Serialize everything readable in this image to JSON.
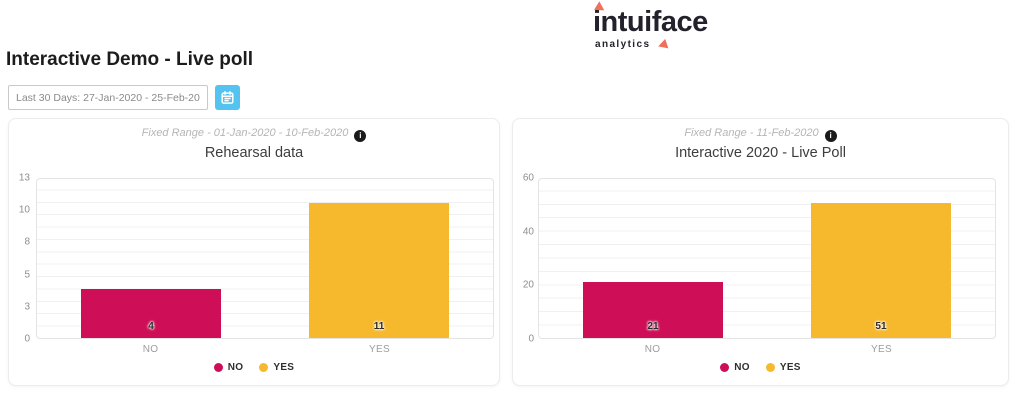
{
  "logo": {
    "brand": "intuiface",
    "sub": "analytics",
    "accent": "#f0705c",
    "text_color": "#23222c"
  },
  "header": {
    "title": "Interactive Demo - Live poll"
  },
  "date_filter": {
    "value": "Last 30 Days: 27-Jan-2020 - 25-Feb-2020",
    "button_color": "#55c3f0"
  },
  "icons": {
    "info_glyph": "i"
  },
  "colors": {
    "no": "#ce0f58",
    "yes": "#f6b92d",
    "grid": "#f0f0f0",
    "plot_border": "#e4e4e4"
  },
  "chart_data": [
    {
      "type": "bar",
      "subtitle": "Fixed Range - 01-Jan-2020 - 10-Feb-2020",
      "title": "Rehearsal data",
      "categories": [
        "NO",
        "YES"
      ],
      "values": [
        4,
        11
      ],
      "bar_colors": [
        "#ce0f58",
        "#f6b92d"
      ],
      "y_ticks": [
        13,
        10,
        8,
        5,
        3,
        0
      ],
      "ylim": [
        0,
        13
      ],
      "minor_divisions": 13,
      "grid": true,
      "legend_position": "bottom",
      "legend": [
        {
          "label": "NO",
          "color": "#ce0f58"
        },
        {
          "label": "YES",
          "color": "#f6b92d"
        }
      ]
    },
    {
      "type": "bar",
      "subtitle": "Fixed Range - 11-Feb-2020",
      "title": "Interactive 2020 - Live Poll",
      "categories": [
        "NO",
        "YES"
      ],
      "values": [
        21,
        51
      ],
      "bar_colors": [
        "#ce0f58",
        "#f6b92d"
      ],
      "y_ticks": [
        60,
        40,
        20,
        0
      ],
      "ylim": [
        0,
        60
      ],
      "minor_divisions": 12,
      "grid": true,
      "legend_position": "bottom",
      "legend": [
        {
          "label": "NO",
          "color": "#ce0f58"
        },
        {
          "label": "YES",
          "color": "#f6b92d"
        }
      ]
    }
  ]
}
